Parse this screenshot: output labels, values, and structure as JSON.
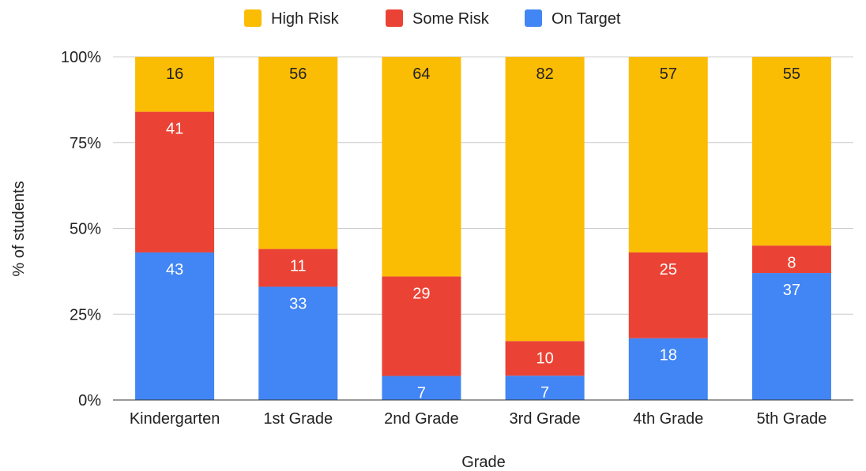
{
  "chart_data": {
    "type": "bar",
    "stacked": true,
    "normalized": true,
    "categories": [
      "Kindergarten",
      "1st Grade",
      "2nd Grade",
      "3rd Grade",
      "4th Grade",
      "5th Grade"
    ],
    "series": [
      {
        "name": "On Target",
        "color": "#4285F4",
        "label_color": "#ffffff",
        "values": [
          43,
          33,
          7,
          7,
          18,
          37
        ]
      },
      {
        "name": "Some Risk",
        "color": "#EA4335",
        "label_color": "#ffffff",
        "values": [
          41,
          11,
          29,
          10,
          25,
          8
        ]
      },
      {
        "name": "High Risk",
        "color": "#FBBC04",
        "label_color": "#222222",
        "values": [
          16,
          56,
          64,
          82,
          57,
          55
        ]
      }
    ],
    "legend_order": [
      "High Risk",
      "Some Risk",
      "On Target"
    ],
    "legend_position": "top",
    "y_ticks": [
      "0%",
      "25%",
      "50%",
      "75%",
      "100%"
    ],
    "xlabel": "Grade",
    "ylabel": "% of students",
    "ylim": [
      0,
      100
    ],
    "grid": true
  }
}
